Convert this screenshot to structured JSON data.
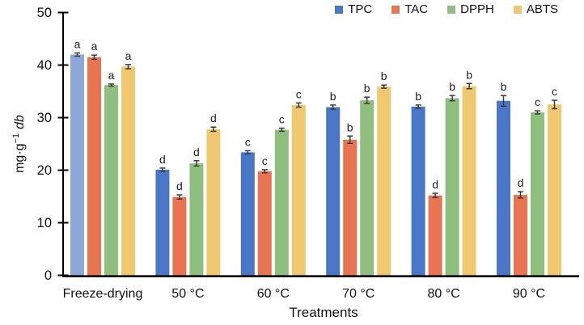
{
  "figure": {
    "x_axis_label": "Treatments",
    "y_axis_label": {
      "main": "mg·g",
      "sup": "−1",
      "italic_suffix": "db"
    }
  },
  "chart_data": {
    "type": "bar",
    "title": "",
    "xlabel": "Treatments",
    "ylabel": "mg·g⁻¹ db",
    "ylim": [
      0,
      50
    ],
    "yticks": [
      0,
      10,
      20,
      30,
      40,
      50
    ],
    "grid": false,
    "error_bars": true,
    "significance_letters": true,
    "legend_position": "top-right",
    "categories": [
      "Freeze-drying",
      "50 °C",
      "60 °C",
      "70 °C",
      "80 °C",
      "90 °C"
    ],
    "series": [
      {
        "name": "TPC",
        "color": "#4A76C8",
        "values": [
          42.0,
          20.1,
          23.4,
          32.0,
          32.1,
          33.2
        ],
        "errors": [
          0.3,
          0.3,
          0.3,
          0.4,
          0.3,
          1.0
        ],
        "letters": [
          "a",
          "d",
          "c",
          "b",
          "b",
          "b"
        ]
      },
      {
        "name": "TAC",
        "color": "#E97451",
        "values": [
          41.5,
          14.9,
          19.8,
          25.8,
          15.2,
          15.3
        ],
        "errors": [
          0.4,
          0.4,
          0.3,
          0.7,
          0.4,
          0.6
        ],
        "letters": [
          "a",
          "d",
          "c",
          "b",
          "d",
          "d"
        ]
      },
      {
        "name": "DPPH",
        "color": "#8FBF7F",
        "values": [
          36.2,
          21.3,
          27.7,
          33.3,
          33.7,
          31.0
        ],
        "errors": [
          0.2,
          0.5,
          0.3,
          0.6,
          0.5,
          0.3
        ],
        "letters": [
          "a",
          "d",
          "c",
          "b",
          "b",
          "c"
        ]
      },
      {
        "name": "ABTS",
        "color": "#EFC870",
        "values": [
          39.7,
          27.8,
          32.4,
          35.9,
          36.0,
          32.5
        ],
        "errors": [
          0.4,
          0.4,
          0.4,
          0.3,
          0.5,
          0.8
        ],
        "letters": [
          "a",
          "d",
          "c",
          "b",
          "b",
          "c"
        ]
      }
    ],
    "color_overrides": [
      {
        "series": "TPC",
        "category": "Freeze-drying",
        "color": "#8CA7D8"
      }
    ],
    "colors": {
      "axis": "#000000",
      "error_bar": "#3a3a3a",
      "text": "#111111"
    }
  }
}
